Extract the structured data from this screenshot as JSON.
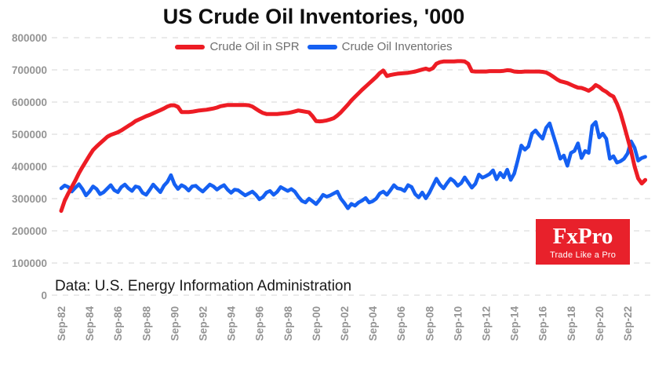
{
  "header": {
    "title": "US Crude Oil Inventories, '000"
  },
  "legend": [
    {
      "label": "Crude Oil in SPR",
      "color": "#ed1c24"
    },
    {
      "label": "Crude Oil Inventories",
      "color": "#1560f2"
    }
  ],
  "source_note": "Data: U.S. Energy Information Administration",
  "logo": {
    "brand": "FxPro",
    "tagline": "Trade Like a Pro",
    "bg": "#e8212b",
    "text_color": "#ffffff"
  },
  "chart_data": {
    "type": "line",
    "title": "US Crude Oil Inventories, '000",
    "xlabel": "",
    "ylabel": "",
    "ylim": [
      0,
      800000
    ],
    "grid": "horizontal-dashed",
    "legend_position": "top",
    "y_ticks": [
      800000,
      700000,
      600000,
      500000,
      400000,
      300000,
      200000,
      100000,
      0
    ],
    "x_tick_labels": [
      "Sep-82",
      "Sep-84",
      "Sep-86",
      "Sep-88",
      "Sep-90",
      "Sep-92",
      "Sep-94",
      "Sep-96",
      "Sep-98",
      "Sep-00",
      "Sep-02",
      "Sep-04",
      "Sep-06",
      "Sep-08",
      "Sep-10",
      "Sep-12",
      "Sep-14",
      "Sep-16",
      "Sep-18",
      "Sep-20",
      "Sep-22"
    ],
    "x_tick_step_years": 2,
    "x_start": 1982.75,
    "x_step": 0.25,
    "series": [
      {
        "name": "Crude Oil in SPR",
        "color": "#ed1c24",
        "values": [
          262000,
          294000,
          316000,
          336000,
          356000,
          379000,
          398000,
          416000,
          434000,
          451000,
          462000,
          472000,
          482000,
          492000,
          498000,
          502000,
          506000,
          512000,
          519000,
          526000,
          533000,
          541000,
          546000,
          551000,
          556000,
          560000,
          565000,
          570000,
          575000,
          580000,
          586000,
          590000,
          590000,
          585000,
          569000,
          569000,
          569000,
          570000,
          572000,
          574000,
          575000,
          576000,
          578000,
          580000,
          583000,
          587000,
          589000,
          591000,
          591000,
          591000,
          591000,
          591000,
          591000,
          590000,
          586000,
          579000,
          572000,
          566000,
          563000,
          563000,
          563000,
          563000,
          564000,
          565000,
          566000,
          568000,
          571000,
          574000,
          572000,
          570000,
          568000,
          556000,
          541000,
          540000,
          541000,
          543000,
          546000,
          550000,
          558000,
          568000,
          580000,
          592000,
          605000,
          616000,
          627000,
          638000,
          648000,
          658000,
          668000,
          678000,
          690000,
          698000,
          681000,
          684000,
          686000,
          688000,
          689000,
          690000,
          691000,
          693000,
          695000,
          698000,
          701000,
          704000,
          700000,
          705000,
          719000,
          724000,
          726000,
          726000,
          726000,
          726000,
          727000,
          727000,
          726000,
          719000,
          696000,
          695000,
          695000,
          695000,
          695000,
          696000,
          696000,
          696000,
          696000,
          697000,
          699000,
          698000,
          695000,
          694000,
          694000,
          695000,
          695000,
          695000,
          695000,
          695000,
          694000,
          692000,
          686000,
          679000,
          671000,
          665000,
          662000,
          659000,
          654000,
          649000,
          645000,
          644000,
          640000,
          635000,
          642000,
          653000,
          647000,
          638000,
          632000,
          623000,
          617000,
          595000,
          566000,
          528000,
          488000,
          448000,
          400000,
          363000,
          347000,
          358000
        ]
      },
      {
        "name": "Crude Oil Inventories",
        "color": "#1560f2",
        "values": [
          332000,
          341000,
          336000,
          322000,
          334000,
          345000,
          330000,
          310000,
          322000,
          338000,
          330000,
          314000,
          320000,
          331000,
          342000,
          326000,
          320000,
          336000,
          344000,
          332000,
          324000,
          338000,
          335000,
          318000,
          312000,
          327000,
          344000,
          332000,
          320000,
          340000,
          352000,
          373000,
          345000,
          330000,
          342000,
          336000,
          325000,
          338000,
          340000,
          330000,
          322000,
          333000,
          344000,
          338000,
          328000,
          336000,
          342000,
          328000,
          318000,
          328000,
          326000,
          318000,
          310000,
          316000,
          322000,
          312000,
          298000,
          305000,
          319000,
          324000,
          312000,
          321000,
          336000,
          330000,
          324000,
          330000,
          322000,
          306000,
          293000,
          288000,
          300000,
          292000,
          283000,
          296000,
          312000,
          306000,
          310000,
          316000,
          322000,
          300000,
          286000,
          270000,
          284000,
          278000,
          288000,
          294000,
          302000,
          288000,
          292000,
          300000,
          316000,
          322000,
          312000,
          326000,
          342000,
          332000,
          330000,
          324000,
          342000,
          336000,
          314000,
          304000,
          319000,
          301000,
          318000,
          340000,
          362000,
          344000,
          332000,
          348000,
          362000,
          354000,
          340000,
          348000,
          366000,
          350000,
          334000,
          346000,
          375000,
          365000,
          370000,
          376000,
          388000,
          360000,
          380000,
          366000,
          390000,
          358000,
          378000,
          420000,
          465000,
          452000,
          462000,
          502000,
          512000,
          498000,
          486000,
          520000,
          534000,
          498000,
          462000,
          424000,
          434000,
          402000,
          442000,
          448000,
          472000,
          426000,
          448000,
          442000,
          526000,
          538000,
          490000,
          502000,
          486000,
          424000,
          432000,
          412000,
          416000,
          424000,
          440000,
          478000,
          458000,
          418000,
          426000,
          430000
        ]
      }
    ]
  }
}
